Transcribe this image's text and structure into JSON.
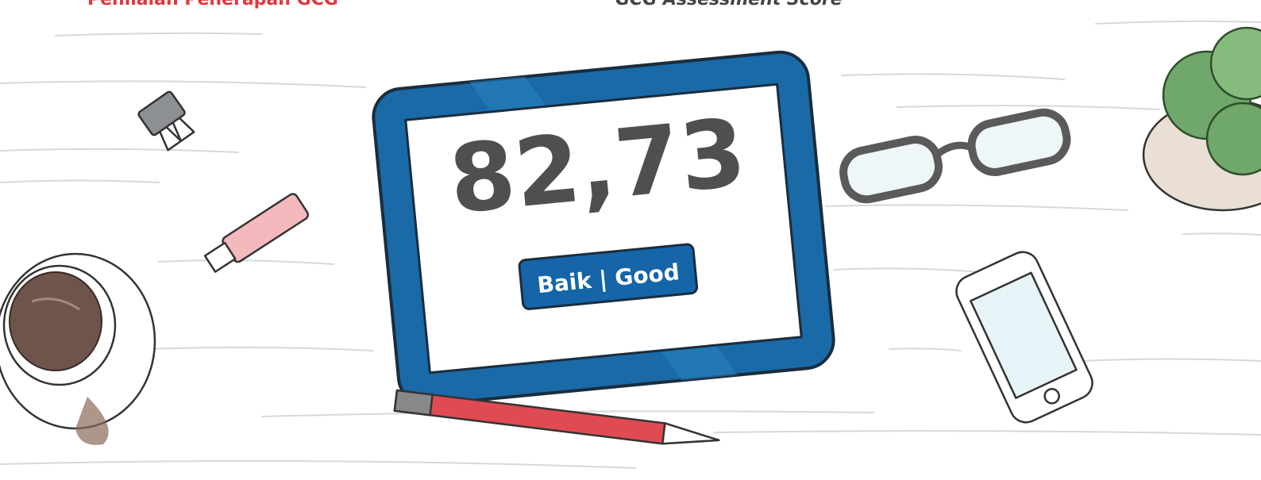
{
  "header": {
    "title_id": "Penilaian Penerapan GCG",
    "title_en": "GCG Assessment Score"
  },
  "tablet": {
    "score": "82,73",
    "rating": "Baik | Good"
  }
}
